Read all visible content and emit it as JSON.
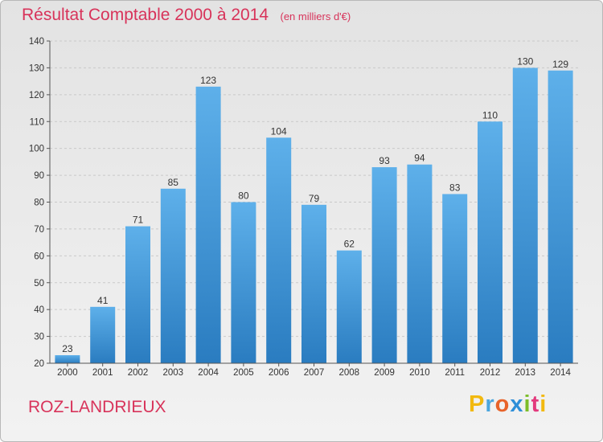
{
  "header": {
    "title": "Résultat Comptable 2000 à 2014",
    "unit": "(en milliers d'€)"
  },
  "footer": {
    "commune": "ROZ-LANDRIEUX",
    "brand_letters": [
      "P",
      "r",
      "o",
      "x",
      "i",
      "t",
      "i"
    ],
    "brand_colors": [
      "#f2b90f",
      "#4ca6de",
      "#e8632a",
      "#2f8fd8",
      "#7cbd2a",
      "#e33a7d",
      "#f2b90f"
    ]
  },
  "colors": {
    "bar_top": "#5eb0ea",
    "bar_bottom": "#2a7cc0",
    "title": "#d8335a",
    "grid": "#c9c9c9",
    "axis": "#555555"
  },
  "chart_data": {
    "type": "bar",
    "title": "Résultat Comptable 2000 à 2014",
    "xlabel": "",
    "ylabel": "(en milliers d'€)",
    "categories": [
      "2000",
      "2001",
      "2002",
      "2003",
      "2004",
      "2005",
      "2006",
      "2007",
      "2008",
      "2009",
      "2010",
      "2011",
      "2012",
      "2013",
      "2014"
    ],
    "values": [
      23,
      41,
      71,
      85,
      123,
      80,
      104,
      79,
      62,
      93,
      94,
      83,
      110,
      130,
      129
    ],
    "ylim": [
      20,
      140
    ],
    "yticks": [
      20,
      30,
      40,
      50,
      60,
      70,
      80,
      90,
      100,
      110,
      120,
      130,
      140
    ],
    "grid": true
  }
}
